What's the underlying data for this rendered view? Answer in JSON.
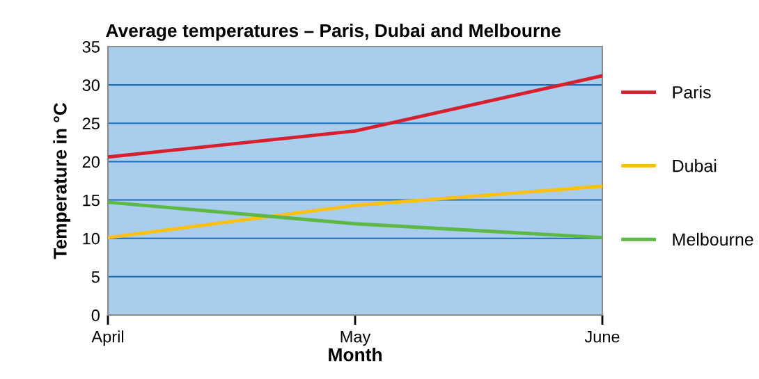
{
  "chart_data": {
    "type": "line",
    "title": "Average temperatures – Paris, Dubai and Melbourne",
    "xlabel": "Month",
    "ylabel": "Temperature in °C",
    "categories": [
      "April",
      "May",
      "June"
    ],
    "series": [
      {
        "name": "Paris",
        "color": "#d7202e",
        "values": [
          20.6,
          24.0,
          31.2
        ]
      },
      {
        "name": "Dubai",
        "color": "#fcc010",
        "values": [
          10.1,
          14.3,
          16.8
        ]
      },
      {
        "name": "Melbourne",
        "color": "#5db846",
        "values": [
          14.7,
          11.9,
          10.1
        ]
      }
    ],
    "ylim": [
      0,
      35
    ],
    "yticks": [
      0,
      5,
      10,
      15,
      20,
      25,
      30,
      35
    ],
    "grid": "y",
    "legend": "right",
    "marker": "none",
    "line_style": "solid"
  }
}
